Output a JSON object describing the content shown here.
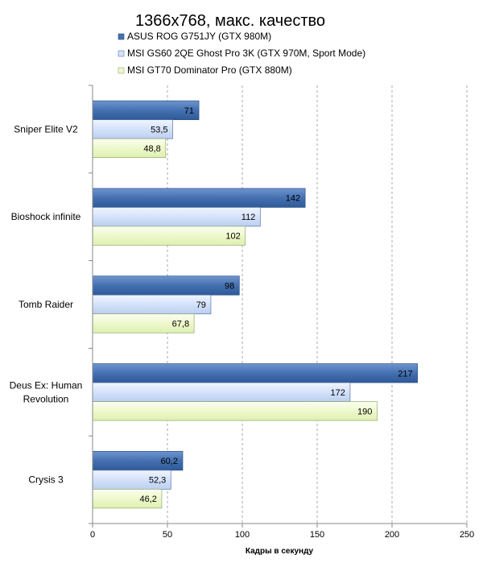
{
  "chart_data": {
    "type": "bar",
    "orientation": "horizontal",
    "title": "1366x768, макс. качество",
    "xlabel": "Кадры  в секунду",
    "ylabel": "",
    "xlim": [
      0,
      250
    ],
    "ticks": [
      0,
      50,
      100,
      150,
      200,
      250
    ],
    "grid": true,
    "legend_position": "top",
    "categories": [
      [
        "Sniper Elite V2"
      ],
      [
        "Bioshock infinite"
      ],
      [
        "Tomb Raider"
      ],
      [
        "Deus Ex: Human",
        "Revolution"
      ],
      [
        "Crysis 3"
      ]
    ],
    "series": [
      {
        "name": "ASUS ROG G751JY (GTX 980M)",
        "color": "#4470b0",
        "values": [
          71,
          142,
          98,
          217,
          60.2
        ],
        "labels": [
          "71",
          "142",
          "98",
          "217",
          "60,2"
        ]
      },
      {
        "name": "MSI GS60 2QE Ghost Pro 3K (GTX 970M, Sport Mode)",
        "color": "#d4e2fa",
        "values": [
          53.5,
          112,
          79,
          172,
          52.3
        ],
        "labels": [
          "53,5",
          "112",
          "79",
          "172",
          "52,3"
        ]
      },
      {
        "name": "MSI GT70 Dominator Pro (GTX 880M)",
        "color": "#eef8cc",
        "values": [
          48.8,
          102,
          67.8,
          190,
          46.2
        ],
        "labels": [
          "48,8",
          "102",
          "67,8",
          "190",
          "46,2"
        ]
      }
    ]
  }
}
